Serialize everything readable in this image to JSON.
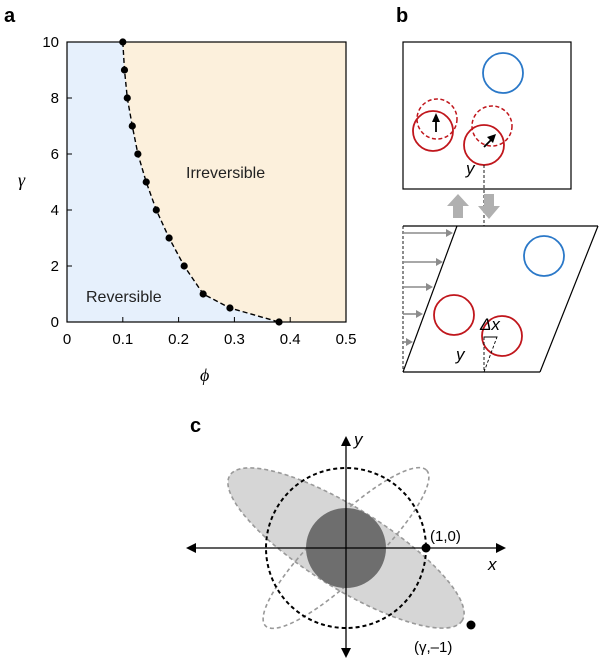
{
  "figure": {
    "panels": [
      "a",
      "b",
      "c"
    ],
    "colors": {
      "reversible": "#e6f0fc",
      "irreversible": "#fcf0dc",
      "particle_red": "#c0161c",
      "particle_blue": "#2a78c8",
      "shear_arrows": "#8c8c8c",
      "ellipse_fill": "#d6d6d6",
      "inner_disk": "#6e6e6e"
    }
  },
  "panel_a": {
    "region_reversible": "Reversible",
    "region_irreversible": "Irreversible",
    "chart_data": {
      "type": "scatter",
      "xlabel": "ϕ",
      "ylabel": "γ",
      "xlim": [
        0,
        0.5
      ],
      "ylim": [
        0,
        10
      ],
      "xticks": [
        0,
        0.1,
        0.2,
        0.3,
        0.4,
        0.5
      ],
      "xtick_labels": [
        "0",
        "0.1",
        "0.2",
        "0.3",
        "0.4",
        "0.5"
      ],
      "yticks": [
        0,
        2,
        4,
        6,
        8,
        10
      ],
      "ytick_labels": [
        "0",
        "2",
        "4",
        "6",
        "8",
        "10"
      ],
      "series": [
        {
          "x": [
            0.1,
            0.103,
            0.108,
            0.117,
            0.127,
            0.142,
            0.16,
            0.183,
            0.21,
            0.244,
            0.292,
            0.38
          ],
          "y": [
            10,
            9,
            8,
            7,
            6,
            5,
            4,
            3,
            2,
            1,
            0.5,
            0
          ]
        }
      ]
    }
  },
  "panel_b": {
    "label_y_top": "y",
    "label_y_bottom": "y",
    "label_dx": "Δx"
  },
  "panel_c": {
    "axis_x": "x",
    "axis_y": "y",
    "point_1": "(1,0)",
    "point_2": "(γ,–1)"
  }
}
